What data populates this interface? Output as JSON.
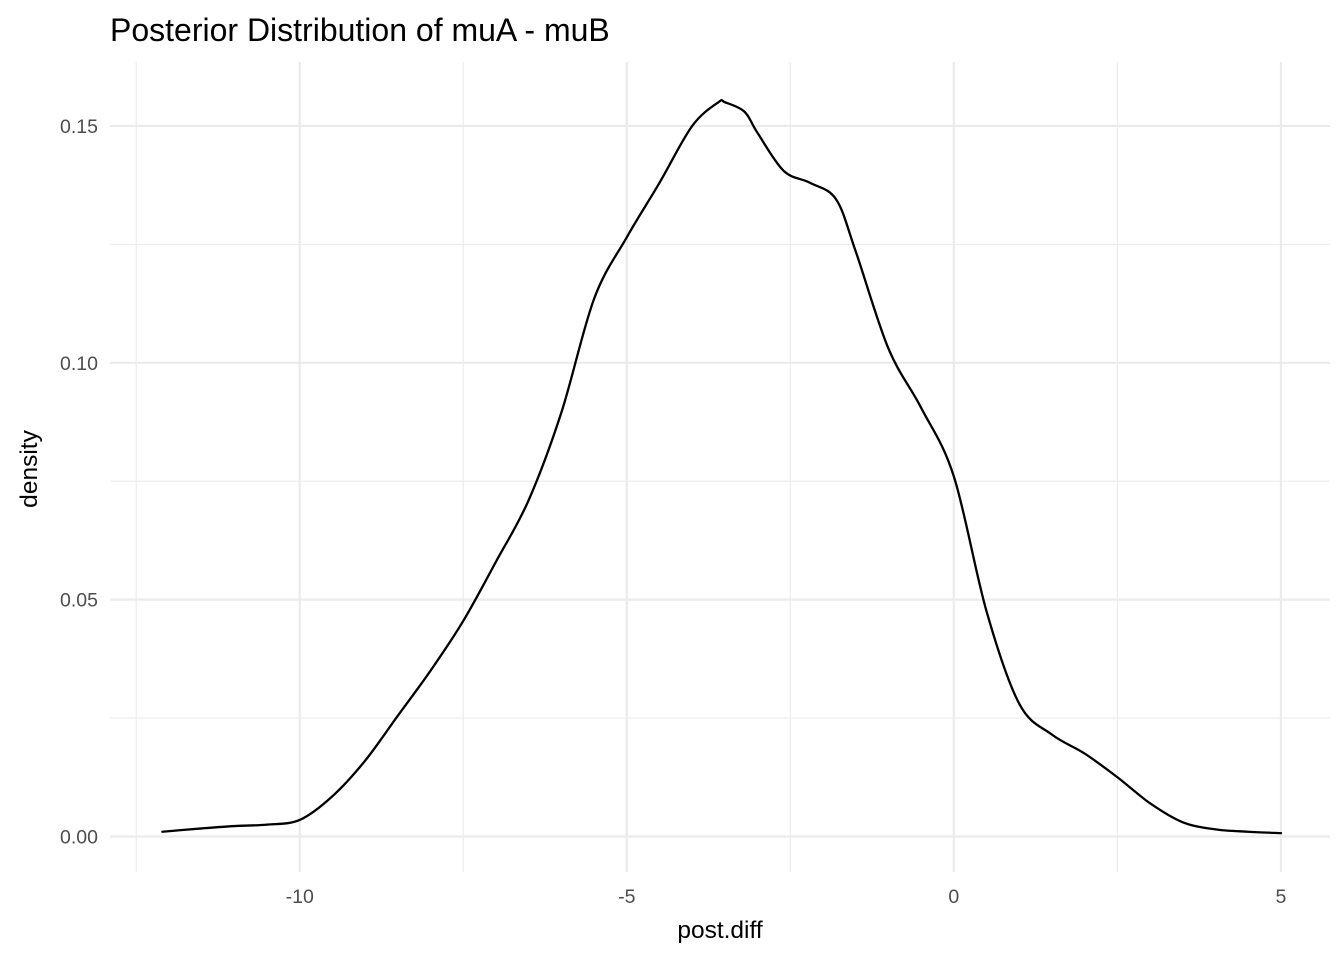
{
  "chart_data": {
    "type": "line",
    "title": "Posterior Distribution of muA - muB",
    "xlabel": "post.diff",
    "ylabel": "density",
    "xlim": [
      -12.9,
      5.75
    ],
    "ylim": [
      -0.0075,
      0.1635
    ],
    "x_ticks": [
      -10,
      -5,
      0,
      5
    ],
    "x_tick_labels": [
      "-10",
      "-5",
      "0",
      "5"
    ],
    "x_minor_ticks": [
      -12.5,
      -7.5,
      -2.5,
      2.5
    ],
    "y_ticks": [
      0.0,
      0.05,
      0.1,
      0.15
    ],
    "y_tick_labels": [
      "0.00",
      "0.05",
      "0.10",
      "0.15"
    ],
    "y_minor_ticks": [
      0.025,
      0.075,
      0.125
    ],
    "grid": true,
    "line_color": "#000000",
    "series": [
      {
        "x": [
          -12.1,
          -11.5,
          -11.0,
          -10.5,
          -10.0,
          -9.5,
          -9.0,
          -8.5,
          -8.0,
          -7.5,
          -7.0,
          -6.5,
          -6.0,
          -5.5,
          -5.0,
          -4.5,
          -4.0,
          -3.6,
          -3.5,
          -3.2,
          -3.0,
          -2.6,
          -2.2,
          -1.8,
          -1.5,
          -1.0,
          -0.5,
          0.0,
          0.5,
          1.0,
          1.5,
          2.0,
          2.5,
          3.0,
          3.5,
          4.0,
          4.5,
          5.0
        ],
        "y": [
          0.001,
          0.0017,
          0.0022,
          0.0025,
          0.0035,
          0.0085,
          0.016,
          0.0255,
          0.035,
          0.0455,
          0.058,
          0.071,
          0.0895,
          0.1135,
          0.1265,
          0.138,
          0.15,
          0.155,
          0.155,
          0.153,
          0.1485,
          0.1405,
          0.138,
          0.1345,
          0.1235,
          0.103,
          0.0905,
          0.076,
          0.0475,
          0.028,
          0.0215,
          0.0175,
          0.0125,
          0.007,
          0.003,
          0.0015,
          0.001,
          0.0007
        ]
      }
    ]
  }
}
